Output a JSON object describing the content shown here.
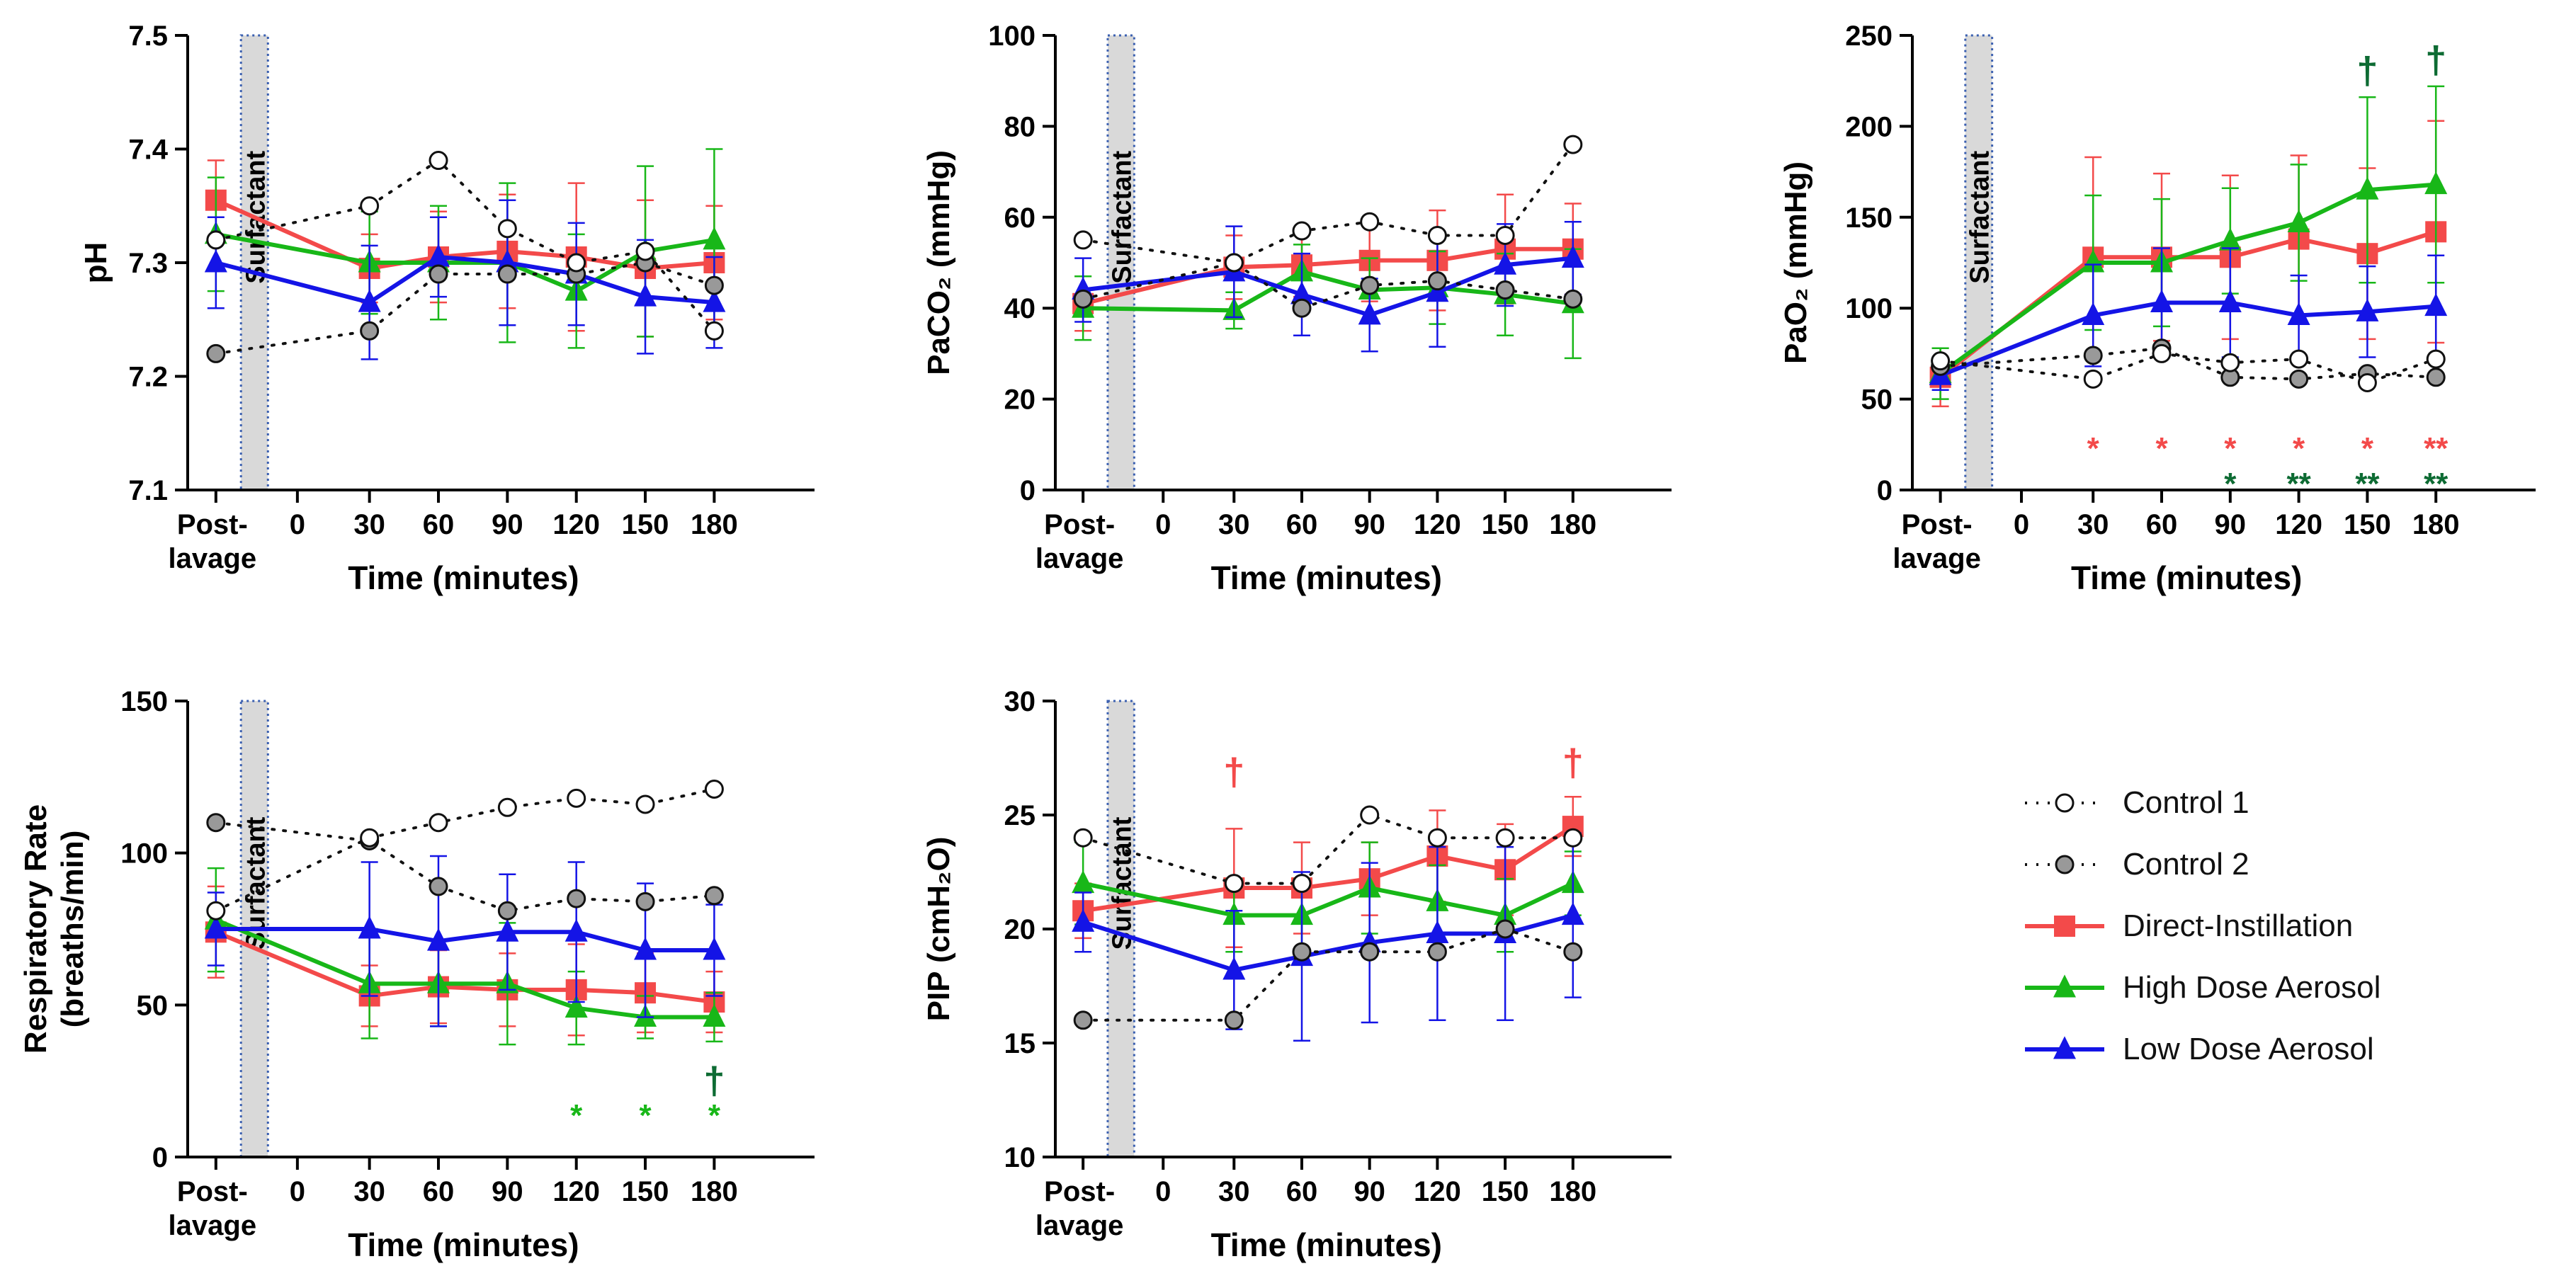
{
  "colors": {
    "control1_fill": "#ffffff",
    "control2_fill": "#999999",
    "direct": "#f34a4a",
    "high": "#18b718",
    "low": "#1414e6",
    "surfactant_fill": "#d9d9d9",
    "surfactant_border": "#3a5fb0",
    "sig_dark_green": "#0d6b33"
  },
  "legend": [
    {
      "key": "control1",
      "label": "Control 1"
    },
    {
      "key": "control2",
      "label": "Control 2"
    },
    {
      "key": "direct",
      "label": "Direct-Instillation"
    },
    {
      "key": "high",
      "label": "High Dose Aerosol"
    },
    {
      "key": "low",
      "label": "Low Dose Aerosol"
    }
  ],
  "chart_data": [
    {
      "id": "ph",
      "type": "line",
      "ylabel": "pH",
      "xlabel": "Time (minutes)",
      "ylim": [
        7.1,
        7.5
      ],
      "yticks": [
        "7.1",
        "7.2",
        "7.3",
        "7.4",
        "7.5"
      ],
      "x_tick_labels": [
        "Post-lavage",
        "0",
        "30",
        "60",
        "90",
        "120",
        "150",
        "180"
      ],
      "shaded_label": "Surfactant",
      "series": [
        {
          "key": "control1",
          "x": [
            "Post-lavage",
            "30",
            "60",
            "90",
            "120",
            "150",
            "180"
          ],
          "values": [
            7.32,
            7.35,
            7.39,
            7.33,
            7.3,
            7.31,
            7.24
          ]
        },
        {
          "key": "control2",
          "x": [
            "Post-lavage",
            "30",
            "60",
            "90",
            "120",
            "150",
            "180"
          ],
          "values": [
            7.22,
            7.24,
            7.29,
            7.29,
            7.29,
            7.3,
            7.28
          ]
        },
        {
          "key": "direct",
          "x": [
            "Post-lavage",
            "30",
            "60",
            "90",
            "120",
            "150",
            "180"
          ],
          "values": [
            7.355,
            7.295,
            7.305,
            7.31,
            7.305,
            7.295,
            7.3
          ],
          "errors": [
            0.035,
            0.03,
            0.04,
            0.05,
            0.065,
            0.06,
            0.05
          ]
        },
        {
          "key": "high",
          "x": [
            "Post-lavage",
            "30",
            "60",
            "90",
            "120",
            "150",
            "180"
          ],
          "values": [
            7.325,
            7.3,
            7.3,
            7.3,
            7.275,
            7.31,
            7.32
          ],
          "errors": [
            0.05,
            0.045,
            0.05,
            0.07,
            0.05,
            0.075,
            0.08
          ]
        },
        {
          "key": "low",
          "x": [
            "Post-lavage",
            "30",
            "60",
            "90",
            "120",
            "150",
            "180"
          ],
          "values": [
            7.3,
            7.265,
            7.305,
            7.3,
            7.29,
            7.27,
            7.265
          ],
          "errors": [
            0.04,
            0.05,
            0.035,
            0.055,
            0.045,
            0.05,
            0.04
          ]
        }
      ],
      "annotations": []
    },
    {
      "id": "paco2",
      "type": "line",
      "ylabel": "PaCO₂ (mmHg)",
      "xlabel": "Time (minutes)",
      "ylim": [
        0,
        100
      ],
      "yticks": [
        "0",
        "20",
        "40",
        "60",
        "80",
        "100"
      ],
      "x_tick_labels": [
        "Post-lavage",
        "0",
        "30",
        "60",
        "90",
        "120",
        "150",
        "180"
      ],
      "shaded_label": "Surfactant",
      "series": [
        {
          "key": "control1",
          "x": [
            "Post-lavage",
            "30",
            "60",
            "90",
            "120",
            "150",
            "180"
          ],
          "values": [
            55,
            50,
            57,
            59,
            56,
            56,
            76
          ]
        },
        {
          "key": "control2",
          "x": [
            "Post-lavage",
            "30",
            "60",
            "90",
            "120",
            "150",
            "180"
          ],
          "values": [
            42,
            50,
            40,
            45,
            46,
            44,
            42
          ]
        },
        {
          "key": "direct",
          "x": [
            "Post-lavage",
            "30",
            "60",
            "90",
            "120",
            "150",
            "180"
          ],
          "values": [
            41,
            49,
            49.5,
            50.5,
            50.5,
            53,
            53
          ],
          "errors": [
            6,
            7,
            7,
            9,
            11,
            12,
            10
          ]
        },
        {
          "key": "high",
          "x": [
            "Post-lavage",
            "30",
            "60",
            "90",
            "120",
            "150",
            "180"
          ],
          "values": [
            40,
            39.5,
            48,
            44,
            44.5,
            43,
            41
          ],
          "errors": [
            7,
            4,
            6,
            7,
            8,
            9,
            12
          ]
        },
        {
          "key": "low",
          "x": [
            "Post-lavage",
            "30",
            "60",
            "90",
            "120",
            "150",
            "180"
          ],
          "values": [
            44,
            48,
            43,
            38.5,
            43.5,
            49.5,
            51
          ],
          "errors": [
            7,
            10,
            9,
            8,
            12,
            9,
            8
          ]
        }
      ],
      "annotations": []
    },
    {
      "id": "pao2",
      "type": "line",
      "ylabel": "PaO₂ (mmHg)",
      "xlabel": "Time (minutes)",
      "ylim": [
        0,
        250
      ],
      "yticks": [
        "0",
        "50",
        "100",
        "150",
        "200",
        "250"
      ],
      "x_tick_labels": [
        "Post-lavage",
        "0",
        "30",
        "60",
        "90",
        "120",
        "150",
        "180"
      ],
      "shaded_label": "Surfactant",
      "series": [
        {
          "key": "control1",
          "x": [
            "Post-lavage",
            "30",
            "60",
            "90",
            "120",
            "150",
            "180"
          ],
          "values": [
            71,
            61,
            75,
            70,
            72,
            59,
            72
          ]
        },
        {
          "key": "control2",
          "x": [
            "Post-lavage",
            "30",
            "60",
            "90",
            "120",
            "150",
            "180"
          ],
          "values": [
            68,
            74,
            78,
            62,
            61,
            64,
            62
          ]
        },
        {
          "key": "direct",
          "x": [
            "Post-lavage",
            "30",
            "60",
            "90",
            "120",
            "150",
            "180"
          ],
          "values": [
            62,
            128,
            128,
            128,
            138,
            130,
            142
          ],
          "errors": [
            16,
            55,
            46,
            45,
            46,
            47,
            61
          ]
        },
        {
          "key": "high",
          "x": [
            "Post-lavage",
            "30",
            "60",
            "90",
            "120",
            "150",
            "180"
          ],
          "values": [
            64,
            125,
            125,
            137,
            147,
            165,
            168
          ],
          "errors": [
            14,
            37,
            35,
            29,
            32,
            51,
            54
          ]
        },
        {
          "key": "low",
          "x": [
            "Post-lavage",
            "30",
            "60",
            "90",
            "120",
            "150",
            "180"
          ],
          "values": [
            63,
            96,
            103,
            103,
            96,
            98,
            101
          ],
          "errors": [
            8,
            28,
            30,
            30,
            22,
            25,
            28
          ]
        }
      ],
      "annotations": [
        {
          "x": "30",
          "text": "*",
          "color": "direct",
          "row": 1
        },
        {
          "x": "60",
          "text": "*",
          "color": "direct",
          "row": 1
        },
        {
          "x": "90",
          "text": "*",
          "color": "direct",
          "row": 1
        },
        {
          "x": "120",
          "text": "*",
          "color": "direct",
          "row": 1
        },
        {
          "x": "150",
          "text": "*",
          "color": "direct",
          "row": 1
        },
        {
          "x": "180",
          "text": "**",
          "color": "direct",
          "row": 1
        },
        {
          "x": "90",
          "text": "*",
          "color": "sig_dark_green",
          "row": 2
        },
        {
          "x": "120",
          "text": "**",
          "color": "sig_dark_green",
          "row": 2
        },
        {
          "x": "150",
          "text": "**",
          "color": "sig_dark_green",
          "row": 2
        },
        {
          "x": "180",
          "text": "**",
          "color": "sig_dark_green",
          "row": 2
        },
        {
          "x": "150",
          "text": "†",
          "color": "sig_dark_green",
          "row": 0,
          "y": 232
        },
        {
          "x": "180",
          "text": "†",
          "color": "sig_dark_green",
          "row": 0,
          "y": 238
        }
      ]
    },
    {
      "id": "rr",
      "type": "line",
      "ylabel": "Respiratory Rate",
      "ylabel2": "(breaths/min)",
      "xlabel": "Time (minutes)",
      "ylim": [
        0,
        150
      ],
      "yticks": [
        "0",
        "50",
        "100",
        "150"
      ],
      "x_tick_labels": [
        "Post-lavage",
        "0",
        "30",
        "60",
        "90",
        "120",
        "150",
        "180"
      ],
      "shaded_label": "Surfactant",
      "series": [
        {
          "key": "control1",
          "x": [
            "Post-lavage",
            "30",
            "60",
            "90",
            "120",
            "150",
            "180"
          ],
          "values": [
            81,
            105,
            110,
            115,
            118,
            116,
            121
          ]
        },
        {
          "key": "control2",
          "x": [
            "Post-lavage",
            "30",
            "60",
            "90",
            "120",
            "150",
            "180"
          ],
          "values": [
            110,
            104,
            89,
            81,
            85,
            84,
            86
          ]
        },
        {
          "key": "direct",
          "x": [
            "Post-lavage",
            "30",
            "60",
            "90",
            "120",
            "150",
            "180"
          ],
          "values": [
            74,
            53,
            56,
            55,
            55,
            54,
            51
          ],
          "errors": [
            15,
            10,
            12,
            12,
            15,
            13,
            10
          ]
        },
        {
          "key": "high",
          "x": [
            "Post-lavage",
            "30",
            "60",
            "90",
            "120",
            "150",
            "180"
          ],
          "values": [
            78,
            57,
            57,
            57,
            49,
            46,
            46
          ],
          "errors": [
            17,
            18,
            14,
            20,
            12,
            7,
            8
          ]
        },
        {
          "key": "low",
          "x": [
            "Post-lavage",
            "30",
            "60",
            "90",
            "120",
            "150",
            "180"
          ],
          "values": [
            75,
            75,
            71,
            74,
            74,
            68,
            68
          ],
          "errors": [
            12,
            22,
            28,
            19,
            23,
            22,
            15
          ]
        }
      ],
      "annotations": [
        {
          "x": "120",
          "text": "*",
          "color": "high",
          "row": 1
        },
        {
          "x": "150",
          "text": "*",
          "color": "high",
          "row": 1
        },
        {
          "x": "180",
          "text": "*",
          "color": "high",
          "row": 1
        },
        {
          "x": "180",
          "text": "†",
          "color": "sig_dark_green",
          "row": 0,
          "y": 26
        }
      ]
    },
    {
      "id": "pip",
      "type": "line",
      "ylabel": "PIP (cmH₂O)",
      "xlabel": "Time (minutes)",
      "ylim": [
        10,
        30
      ],
      "yticks": [
        "10",
        "15",
        "20",
        "25",
        "30"
      ],
      "x_tick_labels": [
        "Post-lavage",
        "0",
        "30",
        "60",
        "90",
        "120",
        "150",
        "180"
      ],
      "shaded_label": "Surfactant",
      "series": [
        {
          "key": "control1",
          "x": [
            "Post-lavage",
            "30",
            "60",
            "90",
            "120",
            "150",
            "180"
          ],
          "values": [
            24,
            22,
            22,
            25,
            24,
            24,
            24
          ]
        },
        {
          "key": "control2",
          "x": [
            "Post-lavage",
            "30",
            "60",
            "90",
            "120",
            "150",
            "180"
          ],
          "values": [
            16,
            16,
            19,
            19,
            19,
            20,
            19
          ]
        },
        {
          "key": "direct",
          "x": [
            "Post-lavage",
            "30",
            "60",
            "90",
            "120",
            "150",
            "180"
          ],
          "values": [
            20.8,
            21.8,
            21.8,
            22.2,
            23.2,
            22.6,
            24.5
          ],
          "errors": [
            1.2,
            2.6,
            2,
            1.6,
            2,
            2,
            1.3
          ]
        },
        {
          "key": "high",
          "x": [
            "Post-lavage",
            "30",
            "60",
            "90",
            "120",
            "150",
            "180"
          ],
          "values": [
            22,
            20.6,
            20.6,
            21.8,
            21.2,
            20.6,
            22
          ],
          "errors": [
            1.8,
            1.6,
            1.6,
            2,
            1.6,
            1.6,
            1.4
          ]
        },
        {
          "key": "low",
          "x": [
            "Post-lavage",
            "30",
            "60",
            "90",
            "120",
            "150",
            "180"
          ],
          "values": [
            20.3,
            18.2,
            18.8,
            19.4,
            19.8,
            19.8,
            20.6
          ],
          "errors": [
            1.3,
            2.6,
            3.7,
            3.5,
            3.8,
            3.8,
            3.6
          ]
        }
      ],
      "annotations": [
        {
          "x": "30",
          "text": "†",
          "color": "direct",
          "row": 0,
          "y": 27
        },
        {
          "x": "180",
          "text": "†",
          "color": "direct",
          "row": 0,
          "y": 27.4
        }
      ]
    }
  ]
}
